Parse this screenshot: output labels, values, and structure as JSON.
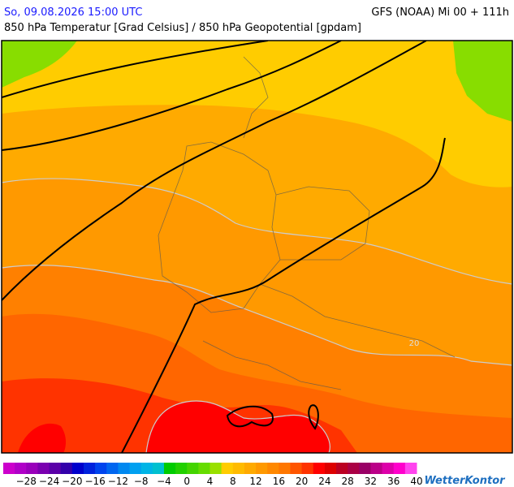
{
  "header": {
    "datetime": "So, 09.08.2026 15:00 UTC",
    "model": "GFS (NOAA) Mi 00 + 111h",
    "subtitle": "850 hPa Temperatur [Grad Celsius] / 850 hPa Geopotential [gpdam]"
  },
  "map": {
    "contour_label": "20"
  },
  "legend": {
    "labels": [
      "−28",
      "−24",
      "−20",
      "−16",
      "−12",
      "−8",
      "−4",
      "0",
      "4",
      "8",
      "12",
      "16",
      "20",
      "24",
      "28",
      "32",
      "36",
      "40"
    ],
    "colors": [
      "#cc00cc",
      "#b000c8",
      "#9900bb",
      "#7a00b0",
      "#5a00a8",
      "#3300aa",
      "#0000cc",
      "#0022dd",
      "#0044ee",
      "#0066f0",
      "#0088f0",
      "#00a0f0",
      "#00b4e6",
      "#00c0d0",
      "#00cc00",
      "#22d000",
      "#44d400",
      "#66dc00",
      "#99e000",
      "#ffcc00",
      "#ffbb00",
      "#ffaa00",
      "#ff9900",
      "#ff8800",
      "#ff7700",
      "#ff5500",
      "#ff3300",
      "#ff0000",
      "#dd0000",
      "#bb0022",
      "#aa0044",
      "#990066",
      "#bb0088",
      "#dd00aa",
      "#ff00cc",
      "#ff44ee"
    ]
  },
  "footer": {
    "brand": "WetterKontor"
  }
}
